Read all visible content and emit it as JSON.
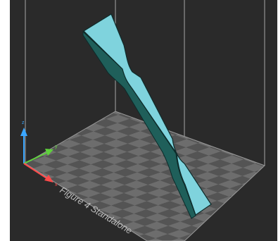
{
  "build_plate": {
    "label": "Figure 4 Standalone"
  },
  "axes": {
    "z": {
      "label": "z",
      "color": "#3aa6ff"
    },
    "y": {
      "label": "y",
      "color": "#5fd13c"
    },
    "x": {
      "label": "x",
      "color": "#ff4a4a"
    }
  },
  "model": {
    "icon": "tensile-dogbone-specimen",
    "face_color": "#7fd3dd",
    "side_color": "#1f5f5a",
    "edge_color": "#0d2b2a"
  },
  "colors": {
    "background": "#2a2a2a",
    "grid_light": "#6d6d6d",
    "grid_dark": "#545454",
    "frame_lines": "#bcbcbc"
  }
}
